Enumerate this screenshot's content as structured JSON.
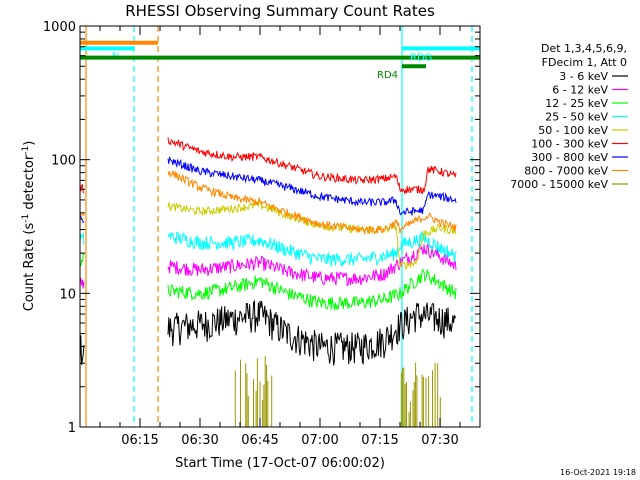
{
  "chart_data": {
    "type": "line",
    "title": "RHESSI Observing Summary Count Rates",
    "xlabel": "Start Time (17-Oct-07 06:00:02)",
    "ylabel_main": "Count Rate (s",
    "ylabel_sup1": "-1",
    "ylabel_mid": " detector",
    "ylabel_sup2": "-1",
    "ylabel_end": ")",
    "y_scale": "log",
    "ylim": [
      1,
      1000
    ],
    "xlim_minutes": [
      0,
      100
    ],
    "x_ticks": [
      {
        "minute": 15,
        "label": "06:15"
      },
      {
        "minute": 30,
        "label": "06:30"
      },
      {
        "minute": 45,
        "label": "06:45"
      },
      {
        "minute": 60,
        "label": "07:00"
      },
      {
        "minute": 75,
        "label": "07:15"
      },
      {
        "minute": 90,
        "label": "07:30"
      }
    ],
    "y_ticks": [
      {
        "value": 1,
        "label": "1"
      },
      {
        "value": 10,
        "label": "10"
      },
      {
        "value": 100,
        "label": "100"
      },
      {
        "value": 1000,
        "label": "1000"
      }
    ],
    "legend_header": [
      "Det 1,3,4,5,6,9,",
      "FDecim 1, Att 0"
    ],
    "series": [
      {
        "name": "3 - 6 keV",
        "color": "#000000",
        "segments": [
          [
            [
              0,
              4
            ],
            [
              1,
              3.5
            ]
          ],
          [
            [
              22,
              5.5
            ],
            [
              32,
              6
            ],
            [
              38,
              6.5
            ],
            [
              45,
              7
            ],
            [
              52,
              5
            ],
            [
              60,
              4
            ],
            [
              70,
              4
            ],
            [
              76,
              4.5
            ],
            [
              79,
              5.5
            ],
            [
              84,
              7
            ],
            [
              90,
              6.5
            ],
            [
              94,
              6
            ]
          ]
        ]
      },
      {
        "name": "6 - 12 keV",
        "color": "#ff00ff",
        "segments": [
          [
            [
              0,
              12
            ],
            [
              1,
              12
            ]
          ],
          [
            [
              22,
              16
            ],
            [
              30,
              15
            ],
            [
              38,
              16
            ],
            [
              45,
              17
            ],
            [
              52,
              14.5
            ],
            [
              60,
              13
            ],
            [
              70,
              13
            ],
            [
              76,
              14
            ],
            [
              80,
              17
            ],
            [
              86,
              22
            ],
            [
              90,
              19
            ],
            [
              94,
              16
            ]
          ]
        ]
      },
      {
        "name": "12 - 25 keV",
        "color": "#00ff00",
        "segments": [
          [
            [
              0,
              18
            ],
            [
              1,
              18
            ]
          ],
          [
            [
              22,
              10.5
            ],
            [
              30,
              10
            ],
            [
              38,
              11
            ],
            [
              45,
              12.5
            ],
            [
              52,
              10
            ],
            [
              60,
              8.5
            ],
            [
              70,
              8.5
            ],
            [
              76,
              9
            ],
            [
              80,
              10
            ],
            [
              86,
              14
            ],
            [
              90,
              12
            ],
            [
              94,
              10
            ]
          ]
        ]
      },
      {
        "name": "25 - 50 keV",
        "color": "#00ffff",
        "segments": [
          [
            [
              0,
              26
            ],
            [
              1,
              25
            ]
          ],
          [
            [
              22,
              27
            ],
            [
              30,
              24
            ],
            [
              38,
              24
            ],
            [
              45,
              25
            ],
            [
              52,
              21
            ],
            [
              60,
              18
            ],
            [
              70,
              18
            ],
            [
              76,
              19
            ],
            [
              79,
              20
            ],
            [
              80,
              23
            ],
            [
              86,
              26
            ],
            [
              90,
              22
            ],
            [
              94,
              19
            ]
          ]
        ]
      },
      {
        "name": "50 - 100 keV",
        "color": "#cccc00",
        "segments": [
          [
            [
              0,
              38
            ],
            [
              1,
              38
            ]
          ],
          [
            [
              22,
              45
            ],
            [
              30,
              41
            ],
            [
              38,
              43
            ],
            [
              45,
              46
            ],
            [
              52,
              38
            ],
            [
              60,
              32
            ],
            [
              70,
              30
            ],
            [
              76,
              30
            ],
            [
              79,
              32
            ],
            [
              80,
              16
            ],
            [
              84,
              17
            ],
            [
              86,
              28
            ],
            [
              90,
              31
            ],
            [
              94,
              29
            ]
          ]
        ]
      },
      {
        "name": "100 - 300 keV",
        "color": "#ff0000",
        "segments": [
          [
            [
              0,
              62
            ],
            [
              1,
              60
            ]
          ],
          [
            [
              22,
              140
            ],
            [
              30,
              115
            ],
            [
              38,
              105
            ],
            [
              45,
              105
            ],
            [
              52,
              90
            ],
            [
              60,
              75
            ],
            [
              70,
              70
            ],
            [
              76,
              72
            ],
            [
              79,
              75
            ],
            [
              80,
              60
            ],
            [
              86,
              60
            ],
            [
              87,
              85
            ],
            [
              90,
              82
            ],
            [
              94,
              75
            ]
          ]
        ]
      },
      {
        "name": "300 - 800 keV",
        "color": "#0000ff",
        "segments": [
          [
            [
              0,
              36
            ],
            [
              1,
              35
            ]
          ],
          [
            [
              22,
              100
            ],
            [
              30,
              82
            ],
            [
              38,
              75
            ],
            [
              45,
              70
            ],
            [
              52,
              62
            ],
            [
              60,
              53
            ],
            [
              70,
              48
            ],
            [
              76,
              48
            ],
            [
              79,
              50
            ],
            [
              80,
              40
            ],
            [
              86,
              42
            ],
            [
              87,
              55
            ],
            [
              90,
              53
            ],
            [
              94,
              50
            ]
          ]
        ]
      },
      {
        "name": "800 - 7000 keV",
        "color": "#ff8800",
        "segments": [
          [
            [
              0,
              40
            ],
            [
              1,
              38
            ]
          ],
          [
            [
              22,
              82
            ],
            [
              30,
              62
            ],
            [
              38,
              52
            ],
            [
              45,
              48
            ],
            [
              52,
              40
            ],
            [
              60,
              33
            ],
            [
              70,
              30
            ],
            [
              76,
              30
            ],
            [
              79,
              34
            ],
            [
              80,
              30
            ],
            [
              84,
              35
            ],
            [
              87,
              38
            ],
            [
              90,
              34
            ],
            [
              94,
              31
            ]
          ]
        ]
      },
      {
        "name": "7000 - 15000 keV",
        "color": "#999900",
        "segments": []
      }
    ],
    "bursts": [
      {
        "from": 38.5,
        "to": 48.5
      },
      {
        "from": 80,
        "to": 92
      }
    ],
    "flags": [
      {
        "label": "S",
        "color": "#ff8800",
        "from": 0,
        "to": 19.5,
        "level": 750
      },
      {
        "label": "N",
        "color": "#00ffff",
        "from": 0,
        "to": 13.5,
        "level": 680
      },
      {
        "label": "",
        "color": "#008800",
        "from": 0,
        "to": 100,
        "level": 580
      },
      {
        "label": "RD4",
        "color": "#008800",
        "from": 80.5,
        "to": 86.5,
        "level": 500
      },
      {
        "label": "RDG",
        "color": "#00ffff",
        "from": 80.5,
        "to": 100,
        "level": 680
      }
    ],
    "markers": [
      {
        "minute": 1.5,
        "color": "#ff8800",
        "style": "solid"
      },
      {
        "minute": 13.5,
        "color": "#00ffff",
        "style": "dashed"
      },
      {
        "minute": 19.5,
        "color": "#ff8800",
        "style": "dashed"
      },
      {
        "minute": 80.5,
        "color": "#00ffff",
        "style": "solid"
      },
      {
        "minute": 98,
        "color": "#00ffff",
        "style": "dashed"
      }
    ],
    "footer": "16-Oct-2021 19:18"
  }
}
